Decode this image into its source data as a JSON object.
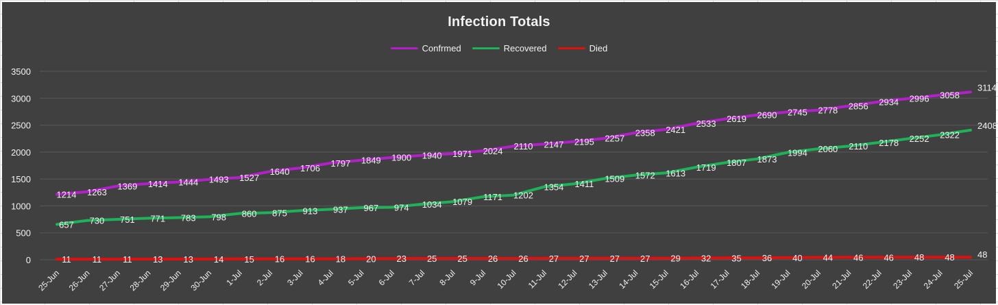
{
  "spreadsheet": {
    "background": "#ffffff",
    "gridline_color": "#d9d9d9"
  },
  "colors": {
    "chart_bg": "#404040",
    "gridline": "#595959",
    "text": "#f2f2f2",
    "confirmed": "#b120c8",
    "recovered": "#1fb259",
    "died": "#e01010"
  },
  "chart_data": {
    "type": "line",
    "title": "Infection Totals",
    "xlabel": "",
    "ylabel": "",
    "ylim": [
      0,
      3500
    ],
    "yticks": [
      0,
      500,
      1000,
      1500,
      2000,
      2500,
      3000,
      3500
    ],
    "grid": true,
    "legend_position": "top-center",
    "categories": [
      "25-Jun",
      "26-Jun",
      "27-Jun",
      "28-Jun",
      "29-Jun",
      "30-Jun",
      "1-Jul",
      "2-Jul",
      "3-Jul",
      "4-Jul",
      "5-Jul",
      "6-Jul",
      "7-Jul",
      "8-Jul",
      "9-Jul",
      "10-Jul",
      "11-Jul",
      "12-Jul",
      "13-Jul",
      "14-Jul",
      "15-Jul",
      "16-Jul",
      "17-Jul",
      "18-Jul",
      "19-Jul",
      "20-Jul",
      "21-Jul",
      "22-Jul",
      "23-Jul",
      "24-Jul",
      "25-Jul"
    ],
    "series": [
      {
        "name": "Confrmed",
        "color": "#b120c8",
        "values": [
          1214,
          1263,
          1369,
          1414,
          1444,
          1493,
          1527,
          1640,
          1706,
          1797,
          1849,
          1900,
          1940,
          1971,
          2024,
          2110,
          2147,
          2195,
          2257,
          2358,
          2421,
          2533,
          2619,
          2690,
          2745,
          2778,
          2856,
          2934,
          2996,
          3058,
          3114
        ]
      },
      {
        "name": "Recovered",
        "color": "#1fb259",
        "values": [
          657,
          730,
          751,
          771,
          783,
          798,
          860,
          875,
          913,
          937,
          967,
          974,
          1034,
          1079,
          1171,
          1202,
          1354,
          1411,
          1509,
          1572,
          1613,
          1719,
          1807,
          1873,
          1994,
          2060,
          2110,
          2178,
          2252,
          2322,
          2408
        ]
      },
      {
        "name": "Died",
        "color": "#e01010",
        "values": [
          11,
          11,
          11,
          13,
          13,
          14,
          15,
          16,
          16,
          18,
          20,
          23,
          25,
          25,
          26,
          26,
          27,
          27,
          27,
          27,
          29,
          32,
          35,
          36,
          40,
          44,
          46,
          46,
          48,
          48,
          48
        ]
      }
    ]
  }
}
